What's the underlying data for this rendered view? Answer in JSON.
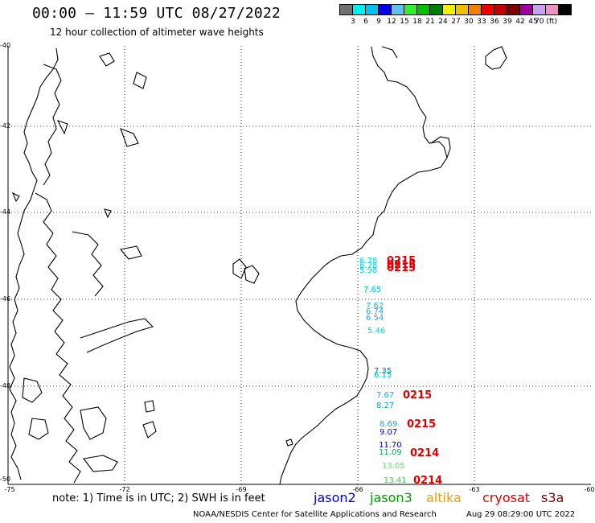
{
  "title": "00:00 – 11:59 UTC 08/27/2022",
  "subtitle": "12 hour collection of altimeter wave heights",
  "legend": {
    "colors": [
      "#707070",
      "#00f0f0",
      "#00c0f0",
      "#0000f0",
      "#60c0f0",
      "#30f030",
      "#00c000",
      "#008000",
      "#f0f000",
      "#f0c000",
      "#f08000",
      "#f00000",
      "#c00000",
      "#800000",
      "#a000a0",
      "#c8a0f0",
      "#f090c0",
      "#000000"
    ],
    "labels": [
      "3",
      "6",
      "9",
      "12",
      "15",
      "18",
      "21",
      "24",
      "27",
      "30",
      "33",
      "36",
      "39",
      "42",
      "45",
      "70 (ft)"
    ]
  },
  "y_ticks": [
    "-40",
    "-42",
    "-44",
    "-46",
    "-48",
    "-50"
  ],
  "x_ticks": [
    "-75",
    "-72",
    "-69",
    "-66",
    "-63",
    "-60"
  ],
  "wave_heights": [
    {
      "text": "6.78",
      "color": "#00d8e8"
    },
    {
      "text": "6.78",
      "color": "#00d8e8"
    },
    {
      "text": "5.98",
      "color": "#00d8e8"
    },
    {
      "text": "7.65",
      "color": "#00c8e0"
    },
    {
      "text": "7.62",
      "color": "#20b0e0"
    },
    {
      "text": "6.74",
      "color": "#20b0e0"
    },
    {
      "text": "6.54",
      "color": "#20b0e0"
    },
    {
      "text": "5.46",
      "color": "#00d8e8"
    },
    {
      "text": "7.35",
      "color": "#008888"
    },
    {
      "text": "6.15",
      "color": "#00b8c8"
    },
    {
      "text": "7.67",
      "color": "#00b8e8"
    },
    {
      "text": "8.27",
      "color": "#20a0d0"
    },
    {
      "text": "8.69",
      "color": "#20a0e0"
    },
    {
      "text": "9.07",
      "color": "#0000d0"
    },
    {
      "text": "11.70",
      "color": "#0000d0"
    },
    {
      "text": "11.09",
      "color": "#20a060"
    },
    {
      "text": "13.05",
      "color": "#60e060"
    },
    {
      "text": "13.41",
      "color": "#40d040"
    }
  ],
  "pass_times": [
    {
      "text": "0215",
      "color": "#e00000"
    },
    {
      "text": "0215",
      "color": "#e00000"
    },
    {
      "text": "0215",
      "color": "#e00000"
    },
    {
      "text": "0215",
      "color": "#e00000"
    },
    {
      "text": "0215",
      "color": "#e00000"
    },
    {
      "text": "0214",
      "color": "#e00000"
    },
    {
      "text": "0214",
      "color": "#e00000"
    }
  ],
  "note": "note: 1) Time is in UTC; 2) SWH is in feet",
  "satellites": [
    {
      "name": "jason2",
      "color": "#0000e0"
    },
    {
      "name": "jason3",
      "color": "#00a000"
    },
    {
      "name": "altika",
      "color": "#f0a000"
    },
    {
      "name": "cryosat",
      "color": "#e00000"
    },
    {
      "name": "s3a",
      "color": "#800000"
    }
  ],
  "credit": "NOAA/NESDIS Center for Satellite Applications and Research",
  "timestamp": "Aug 29 08:29:00 UTC 2022"
}
